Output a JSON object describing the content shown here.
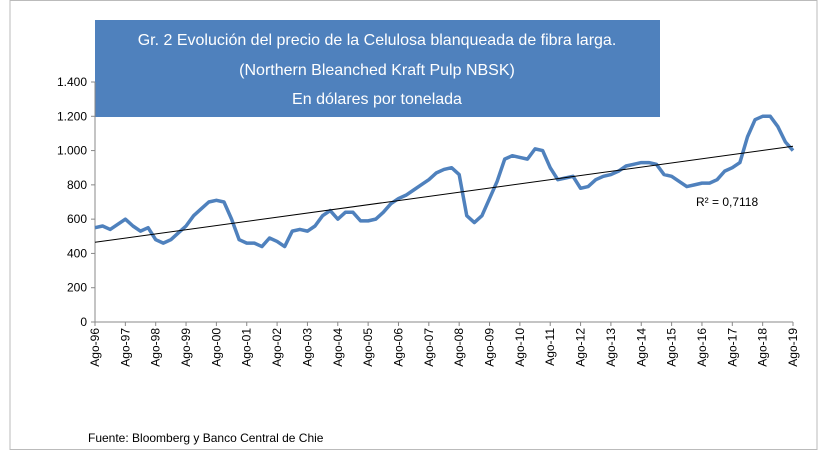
{
  "chart_data": {
    "type": "line",
    "title": [
      "Gr. 2  Evolución del precio de la Celulosa blanqueada de fibra larga.",
      "(Northern  Bleanched Kraft Pulp NBSK)",
      "En dólares por tonelada"
    ],
    "source": "Fuente: Bloomberg y Banco Central de Chie",
    "annotation": "R² = 0,7118",
    "categories": [
      "Ago-96",
      null,
      null,
      null,
      "Ago-97",
      null,
      null,
      null,
      "Ago-98",
      null,
      null,
      null,
      "Ago-99",
      null,
      null,
      null,
      "Ago-00",
      null,
      null,
      null,
      "Ago-01",
      null,
      null,
      null,
      "Ago-02",
      null,
      null,
      null,
      "Ago-03",
      null,
      null,
      null,
      "Ago-04",
      null,
      null,
      null,
      "Ago-05",
      null,
      null,
      null,
      "Ago-06",
      null,
      null,
      null,
      "Ago-07",
      null,
      null,
      null,
      "Ago-08",
      null,
      null,
      null,
      "Ago-09",
      null,
      null,
      null,
      "Ago-10",
      null,
      null,
      null,
      "Ago-11",
      null,
      null,
      null,
      "Ago-12",
      null,
      null,
      null,
      "Ago-13",
      null,
      null,
      null,
      "Ago-14",
      null,
      null,
      null,
      "Ago-15",
      null,
      null,
      null,
      "Ago-16",
      null,
      null,
      null,
      "Ago-17",
      null,
      null,
      null,
      "Ago-18",
      null,
      null,
      null,
      "Ago-19"
    ],
    "series": [
      {
        "color": "#4f81bd",
        "values": [
          550,
          560,
          540,
          570,
          600,
          560,
          530,
          550,
          480,
          460,
          480,
          520,
          560,
          620,
          660,
          700,
          710,
          700,
          600,
          480,
          460,
          460,
          440,
          490,
          470,
          440,
          530,
          540,
          530,
          560,
          620,
          650,
          600,
          640,
          640,
          590,
          590,
          600,
          640,
          690,
          720,
          740,
          770,
          800,
          830,
          870,
          890,
          900,
          860,
          620,
          580,
          620,
          720,
          820,
          950,
          970,
          960,
          950,
          1010,
          1000,
          900,
          830,
          840,
          850,
          780,
          790,
          830,
          850,
          860,
          880,
          910,
          920,
          930,
          930,
          920,
          860,
          850,
          820,
          790,
          800,
          810,
          810,
          830,
          880,
          900,
          930,
          1080,
          1180,
          1200,
          1200,
          1140,
          1050,
          1000
        ]
      }
    ],
    "trendline": {
      "color": "#000000",
      "values": [
        465,
        1025
      ]
    },
    "ylim": [
      0,
      1400
    ],
    "yticks": [
      0,
      {
        "value": 200,
        "label": "200"
      },
      400,
      600,
      800,
      {
        "value": 1000,
        "label": "1.000"
      },
      {
        "value": 1200,
        "label": "1.200"
      },
      {
        "value": 1400,
        "label": "1.400"
      }
    ]
  }
}
